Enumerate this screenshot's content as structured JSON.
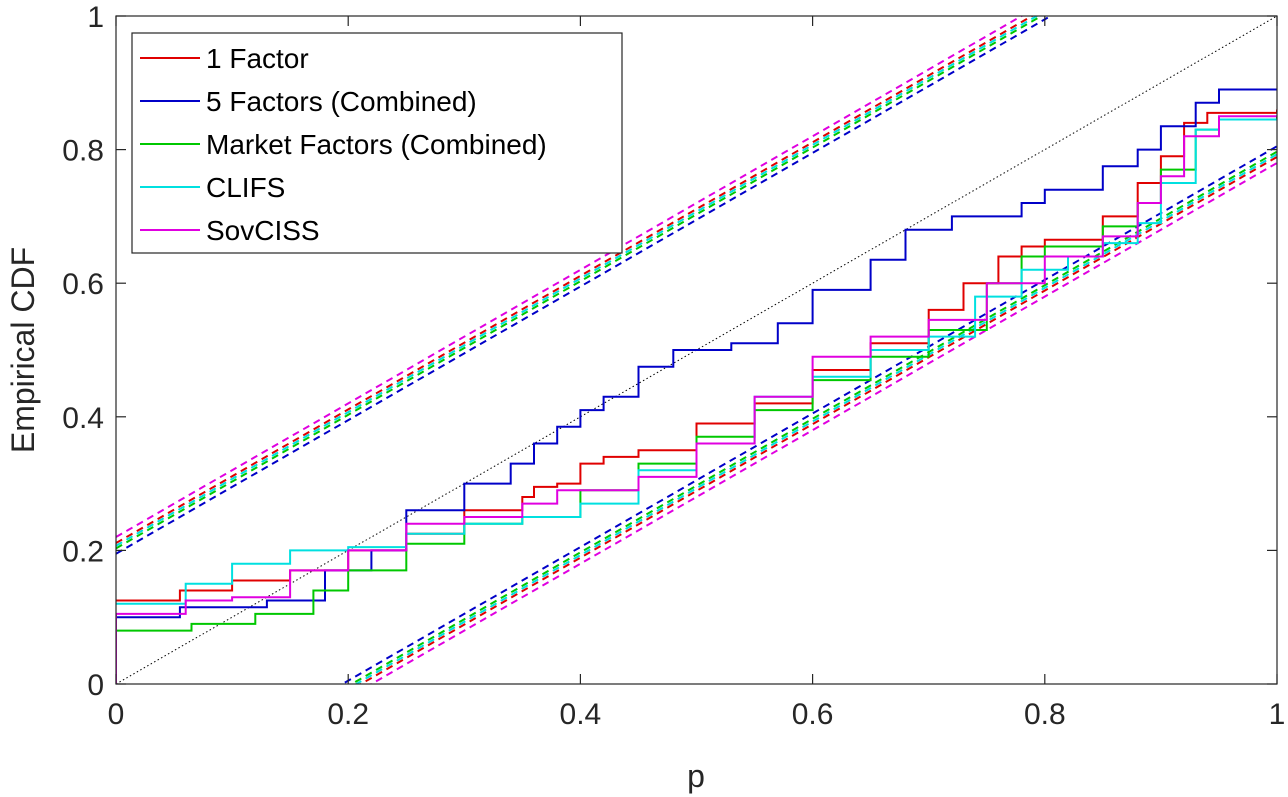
{
  "chart_data": {
    "type": "line",
    "title": "",
    "xlabel": "p",
    "ylabel": "Empirical CDF",
    "xlim": [
      0,
      1
    ],
    "ylim": [
      0,
      1
    ],
    "x_ticks": [
      0,
      0.2,
      0.4,
      0.6,
      0.8,
      1
    ],
    "y_ticks": [
      0,
      0.2,
      0.4,
      0.6,
      0.8,
      1
    ],
    "x_tick_labels": [
      "0",
      "0.2",
      "0.4",
      "0.6",
      "0.8",
      "1"
    ],
    "y_tick_labels": [
      "0",
      "0.2",
      "0.4",
      "0.6",
      "0.8",
      "1"
    ],
    "grid": false,
    "legend_position": "top-left",
    "reference_line": {
      "points": [
        [
          0,
          0
        ],
        [
          1,
          1
        ]
      ],
      "color": "#000000",
      "style": "dotted"
    },
    "series": [
      {
        "name": "1 Factor",
        "color": "#e00000",
        "points": [
          [
            0,
            0.125
          ],
          [
            0.055,
            0.125
          ],
          [
            0.055,
            0.14
          ],
          [
            0.1,
            0.14
          ],
          [
            0.1,
            0.155
          ],
          [
            0.15,
            0.17
          ],
          [
            0.2,
            0.2
          ],
          [
            0.25,
            0.225
          ],
          [
            0.3,
            0.26
          ],
          [
            0.35,
            0.28
          ],
          [
            0.36,
            0.295
          ],
          [
            0.38,
            0.3
          ],
          [
            0.4,
            0.33
          ],
          [
            0.42,
            0.34
          ],
          [
            0.45,
            0.35
          ],
          [
            0.5,
            0.39
          ],
          [
            0.55,
            0.42
          ],
          [
            0.6,
            0.47
          ],
          [
            0.65,
            0.51
          ],
          [
            0.7,
            0.56
          ],
          [
            0.73,
            0.6
          ],
          [
            0.76,
            0.64
          ],
          [
            0.78,
            0.655
          ],
          [
            0.8,
            0.665
          ],
          [
            0.85,
            0.7
          ],
          [
            0.88,
            0.75
          ],
          [
            0.9,
            0.79
          ],
          [
            0.92,
            0.84
          ],
          [
            0.94,
            0.855
          ],
          [
            1,
            0.86
          ]
        ]
      },
      {
        "name": "5 Factors (Combined)",
        "color": "#0000c8",
        "points": [
          [
            0,
            0.1
          ],
          [
            0.055,
            0.1
          ],
          [
            0.055,
            0.115
          ],
          [
            0.13,
            0.125
          ],
          [
            0.18,
            0.17
          ],
          [
            0.22,
            0.2
          ],
          [
            0.25,
            0.26
          ],
          [
            0.3,
            0.3
          ],
          [
            0.34,
            0.33
          ],
          [
            0.36,
            0.36
          ],
          [
            0.38,
            0.385
          ],
          [
            0.4,
            0.41
          ],
          [
            0.42,
            0.43
          ],
          [
            0.45,
            0.475
          ],
          [
            0.48,
            0.5
          ],
          [
            0.53,
            0.51
          ],
          [
            0.57,
            0.54
          ],
          [
            0.6,
            0.59
          ],
          [
            0.65,
            0.635
          ],
          [
            0.68,
            0.68
          ],
          [
            0.72,
            0.7
          ],
          [
            0.78,
            0.72
          ],
          [
            0.8,
            0.74
          ],
          [
            0.85,
            0.775
          ],
          [
            0.88,
            0.8
          ],
          [
            0.9,
            0.835
          ],
          [
            0.93,
            0.87
          ],
          [
            0.95,
            0.89
          ],
          [
            1,
            0.89
          ]
        ]
      },
      {
        "name": "Market Factors (Combined)",
        "color": "#00c800",
        "points": [
          [
            0,
            0.08
          ],
          [
            0.065,
            0.08
          ],
          [
            0.065,
            0.09
          ],
          [
            0.12,
            0.105
          ],
          [
            0.17,
            0.14
          ],
          [
            0.2,
            0.17
          ],
          [
            0.25,
            0.21
          ],
          [
            0.3,
            0.24
          ],
          [
            0.35,
            0.25
          ],
          [
            0.4,
            0.29
          ],
          [
            0.45,
            0.33
          ],
          [
            0.5,
            0.37
          ],
          [
            0.55,
            0.41
          ],
          [
            0.6,
            0.455
          ],
          [
            0.65,
            0.49
          ],
          [
            0.7,
            0.53
          ],
          [
            0.75,
            0.6
          ],
          [
            0.78,
            0.64
          ],
          [
            0.8,
            0.655
          ],
          [
            0.85,
            0.685
          ],
          [
            0.88,
            0.72
          ],
          [
            0.9,
            0.77
          ],
          [
            0.93,
            0.83
          ],
          [
            0.95,
            0.845
          ],
          [
            1,
            0.85
          ]
        ]
      },
      {
        "name": "CLIFS",
        "color": "#00e0e0",
        "points": [
          [
            0,
            0.12
          ],
          [
            0.05,
            0.12
          ],
          [
            0.06,
            0.15
          ],
          [
            0.1,
            0.18
          ],
          [
            0.15,
            0.2
          ],
          [
            0.2,
            0.205
          ],
          [
            0.25,
            0.225
          ],
          [
            0.3,
            0.24
          ],
          [
            0.35,
            0.25
          ],
          [
            0.4,
            0.27
          ],
          [
            0.45,
            0.32
          ],
          [
            0.5,
            0.36
          ],
          [
            0.55,
            0.43
          ],
          [
            0.6,
            0.46
          ],
          [
            0.65,
            0.5
          ],
          [
            0.7,
            0.52
          ],
          [
            0.74,
            0.58
          ],
          [
            0.78,
            0.62
          ],
          [
            0.82,
            0.64
          ],
          [
            0.85,
            0.66
          ],
          [
            0.88,
            0.69
          ],
          [
            0.9,
            0.75
          ],
          [
            0.93,
            0.83
          ],
          [
            0.95,
            0.845
          ],
          [
            1,
            0.845
          ]
        ]
      },
      {
        "name": "SovCISS",
        "color": "#e000e0",
        "points": [
          [
            0,
            0.105
          ],
          [
            0.06,
            0.105
          ],
          [
            0.06,
            0.125
          ],
          [
            0.1,
            0.13
          ],
          [
            0.15,
            0.17
          ],
          [
            0.2,
            0.2
          ],
          [
            0.25,
            0.24
          ],
          [
            0.3,
            0.25
          ],
          [
            0.35,
            0.27
          ],
          [
            0.38,
            0.29
          ],
          [
            0.42,
            0.29
          ],
          [
            0.45,
            0.31
          ],
          [
            0.5,
            0.36
          ],
          [
            0.55,
            0.43
          ],
          [
            0.6,
            0.49
          ],
          [
            0.65,
            0.52
          ],
          [
            0.7,
            0.545
          ],
          [
            0.75,
            0.6
          ],
          [
            0.8,
            0.64
          ],
          [
            0.85,
            0.67
          ],
          [
            0.88,
            0.72
          ],
          [
            0.9,
            0.76
          ],
          [
            0.92,
            0.82
          ],
          [
            0.95,
            0.85
          ],
          [
            1,
            0.85
          ]
        ]
      }
    ],
    "confidence_bands": [
      {
        "color": "#0000c8",
        "upper_intercept": 0.195,
        "lower_intercept": -0.195
      },
      {
        "color": "#00c800",
        "upper_intercept": 0.203,
        "lower_intercept": -0.203
      },
      {
        "color": "#00e0e0",
        "upper_intercept": 0.207,
        "lower_intercept": -0.207
      },
      {
        "color": "#e00000",
        "upper_intercept": 0.211,
        "lower_intercept": -0.211
      },
      {
        "color": "#e000e0",
        "upper_intercept": 0.22,
        "lower_intercept": -0.22
      }
    ]
  }
}
